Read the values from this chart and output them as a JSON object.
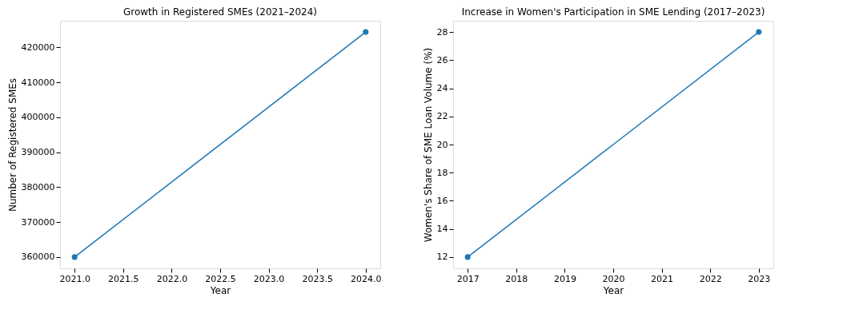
{
  "chart_data": [
    {
      "type": "line",
      "title": "Growth in Registered SMEs (2021–2024)",
      "xlabel": "Year",
      "ylabel": "Number of Registered SMEs",
      "x": [
        2021,
        2024
      ],
      "series": [
        {
          "color": "#1f77b4",
          "values": [
            360000,
            424400
          ]
        }
      ],
      "xlim": [
        2020.85,
        2024.15
      ],
      "xticks": [
        {
          "value": 2021,
          "label": "2021.0"
        },
        {
          "value": 2021.5,
          "label": "2021.5"
        },
        {
          "value": 2022,
          "label": "2022.0"
        },
        {
          "value": 2022.5,
          "label": "2022.5"
        },
        {
          "value": 2023,
          "label": "2023.0"
        },
        {
          "value": 2023.5,
          "label": "2023.5"
        },
        {
          "value": 2024,
          "label": "2024.0"
        }
      ],
      "ylim": [
        356780,
        427620
      ],
      "yticks": [
        360000,
        370000,
        380000,
        390000,
        400000,
        410000,
        420000
      ],
      "marker": "circle"
    },
    {
      "type": "line",
      "title": "Increase in Women's Participation in SME Lending (2017–2023)",
      "xlabel": "Year",
      "ylabel": "Women's Share of SME Loan Volume (%)",
      "x": [
        2017,
        2023
      ],
      "series": [
        {
          "color": "#1f77b4",
          "values": [
            12,
            28
          ]
        }
      ],
      "xlim": [
        2016.7,
        2023.3
      ],
      "xticks": [
        2017,
        2018,
        2019,
        2020,
        2021,
        2022,
        2023
      ],
      "ylim": [
        11.2,
        28.8
      ],
      "yticks": [
        12,
        14,
        16,
        18,
        20,
        22,
        24,
        26,
        28
      ],
      "marker": "circle"
    }
  ]
}
